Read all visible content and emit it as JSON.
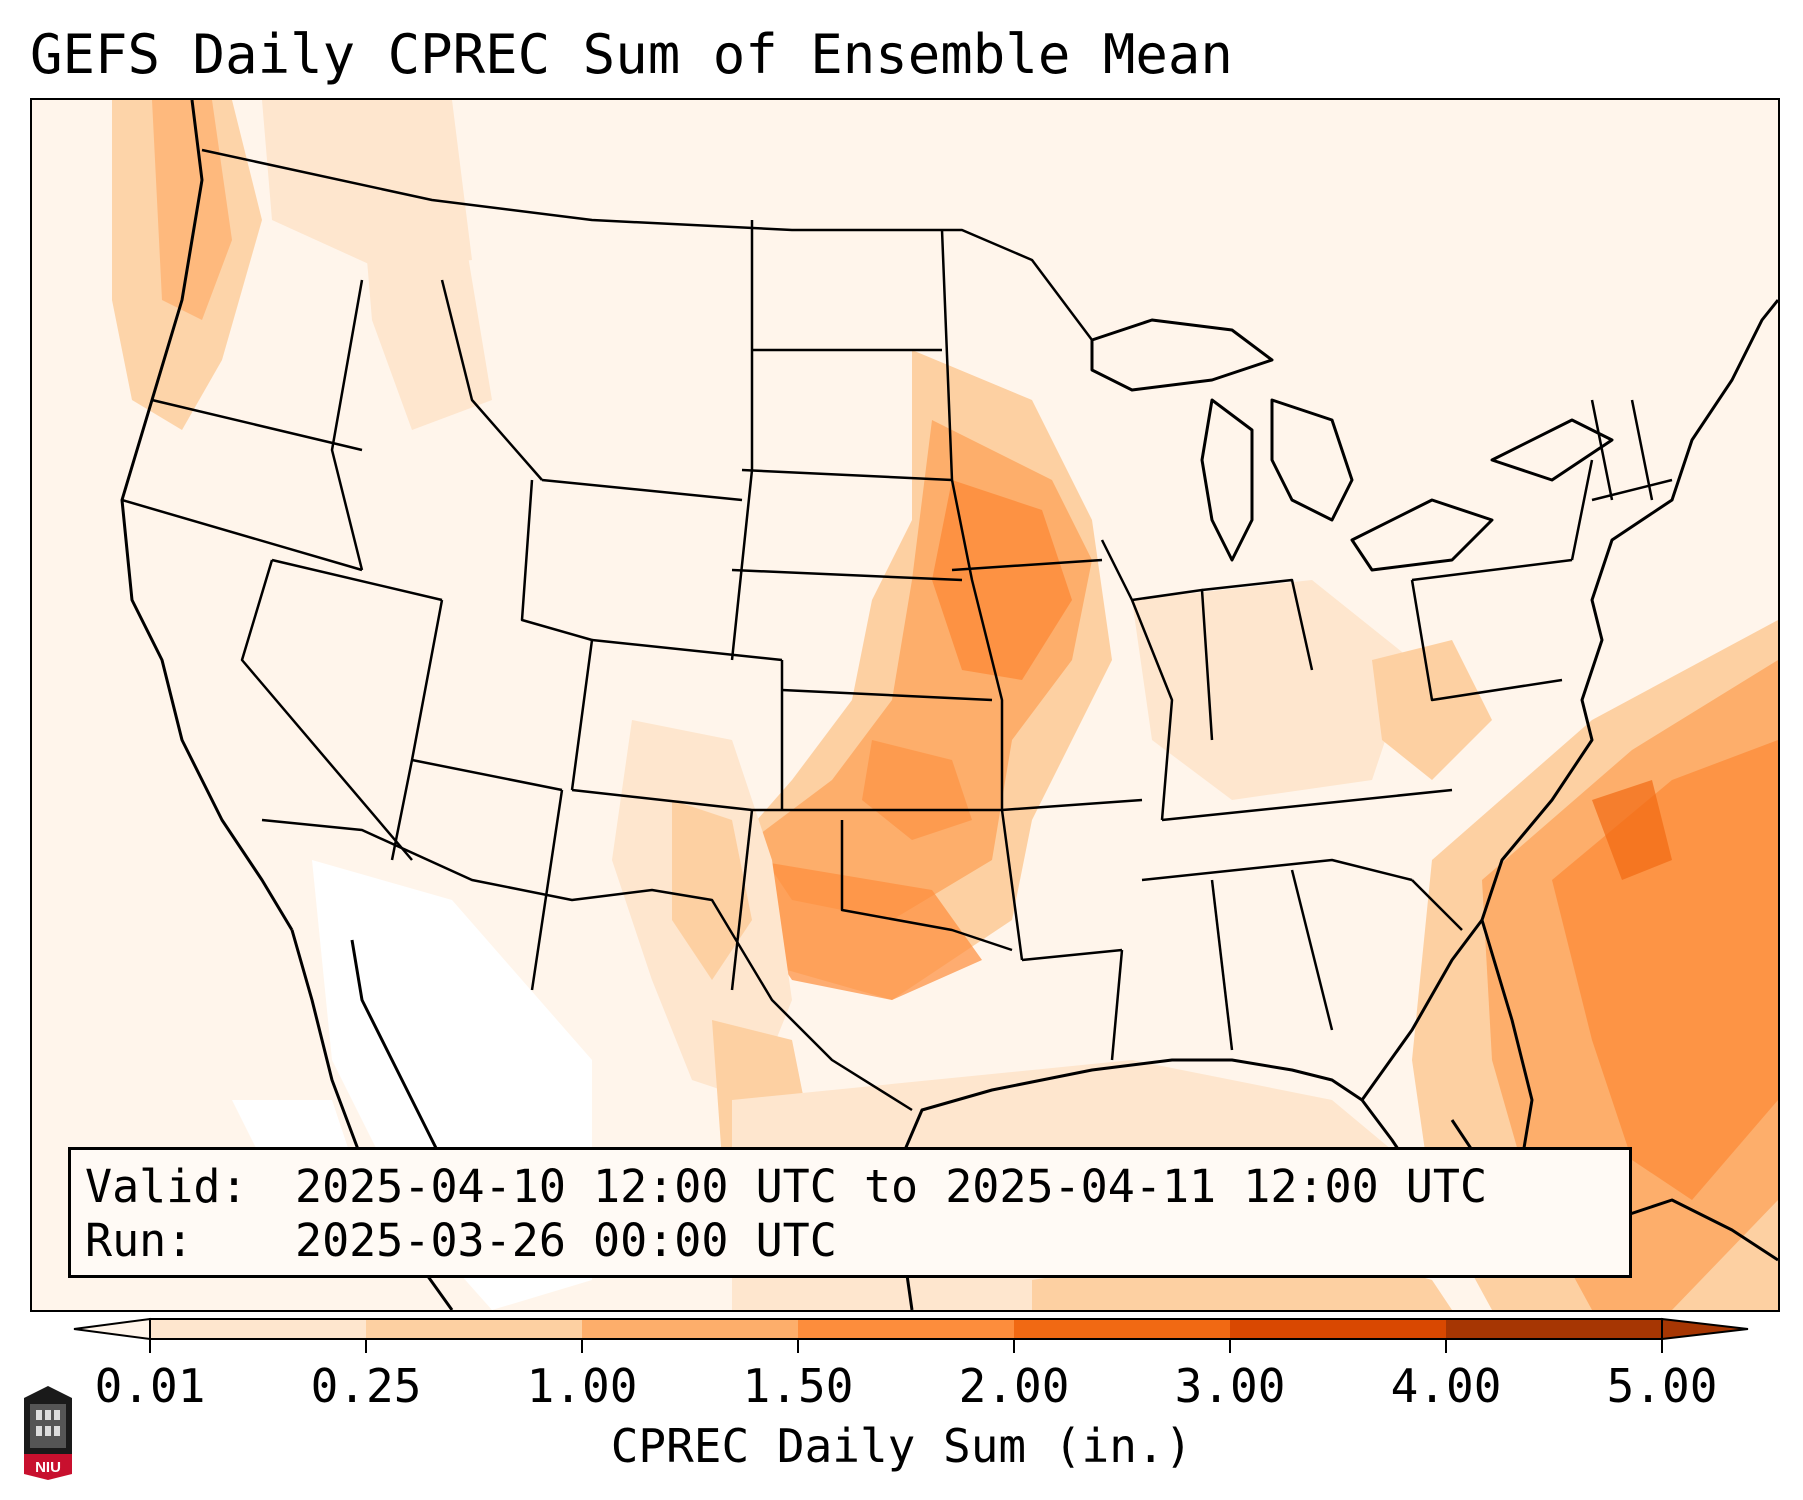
{
  "title": "GEFS Daily CPREC Sum of Ensemble Mean",
  "info": {
    "valid_label": "Valid:",
    "valid_value": "2025-04-10 12:00 UTC to 2025-04-11 12:00 UTC",
    "run_label": "Run:",
    "run_value": "2025-03-26 00:00 UTC"
  },
  "colorbar": {
    "label": "CPREC Daily Sum (in.)",
    "ticks": [
      "0.01",
      "0.25",
      "1.00",
      "1.50",
      "2.00",
      "3.00",
      "4.00",
      "5.00"
    ],
    "colors": [
      "#fff5eb",
      "#fee6ce",
      "#fdd0a2",
      "#fdae6b",
      "#fd8d3c",
      "#f16913",
      "#d94801",
      "#a63603"
    ]
  },
  "logo": {
    "text": "NIU",
    "accent": "#c8102e"
  }
}
